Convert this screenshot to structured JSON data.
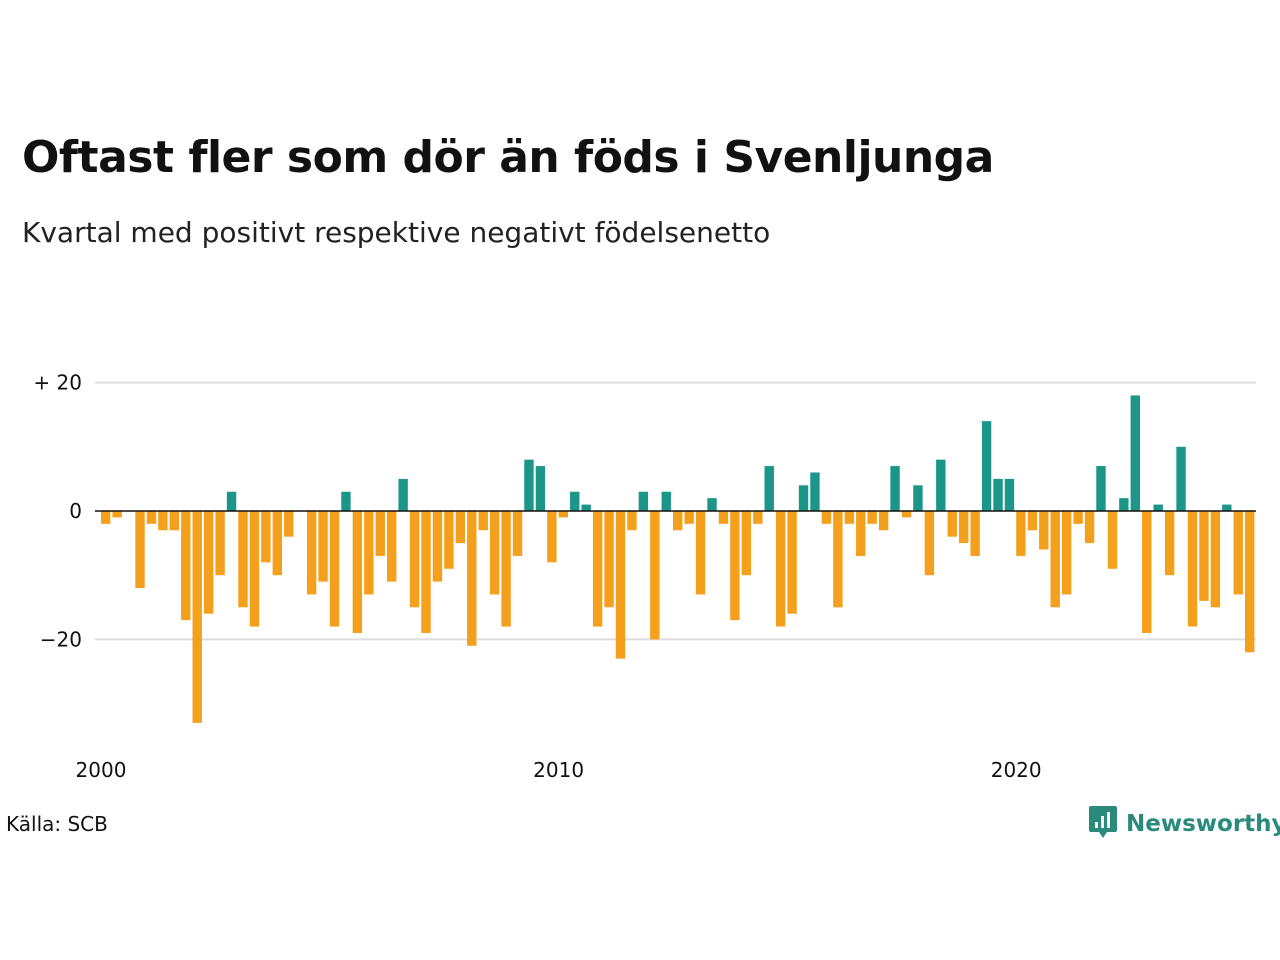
{
  "title": "Oftast fler som dör än föds i Svenljunga",
  "subtitle": "Kvartal med positivt respektive negativt födelsenetto",
  "source": "Källa: SCB",
  "brand": {
    "name": "Newsworthy",
    "icon": "newsworthy-logo-icon"
  },
  "colors": {
    "positive": "#1b9688",
    "negative": "#f5a01c",
    "grid": "#dddddd",
    "zero_line": "#111111"
  },
  "chart_data": {
    "type": "bar",
    "title": "Oftast fler som dör än föds i Svenljunga",
    "subtitle": "Kvartal med positivt respektive negativt födelsenetto",
    "xlabel": "",
    "ylabel": "",
    "x_ticks": [
      {
        "label": "2000",
        "year": 2000
      },
      {
        "label": "2010",
        "year": 2010
      },
      {
        "label": "2020",
        "year": 2020
      }
    ],
    "y_ticks": [
      {
        "label": "+ 20",
        "value": 20
      },
      {
        "label": "0",
        "value": 0
      },
      {
        "label": "−20",
        "value": -20
      }
    ],
    "ylim": [
      -35,
      22
    ],
    "grid": true,
    "start_year": 2000,
    "values": [
      -2,
      -1,
      0,
      -12,
      -2,
      -3,
      -3,
      -17,
      -33,
      -16,
      -10,
      3,
      -15,
      -18,
      -8,
      -10,
      -4,
      0,
      -13,
      -11,
      -18,
      3,
      -19,
      -13,
      -7,
      -11,
      5,
      -15,
      -19,
      -11,
      -9,
      -5,
      -21,
      -3,
      -13,
      -18,
      -7,
      8,
      7,
      -8,
      -1,
      3,
      1,
      -18,
      -15,
      -23,
      -3,
      3,
      -20,
      3,
      -3,
      -2,
      -13,
      2,
      -2,
      -17,
      -10,
      -2,
      7,
      -18,
      -16,
      4,
      6,
      -2,
      -15,
      -2,
      -7,
      -2,
      -3,
      7,
      -1,
      4,
      -10,
      8,
      -4,
      -5,
      -7,
      14,
      5,
      5,
      -7,
      -3,
      -6,
      -15,
      -13,
      -2,
      -5,
      7,
      -9,
      2,
      18,
      -19,
      1,
      -10,
      10,
      -18,
      -14,
      -15,
      1,
      -13,
      -22
    ]
  }
}
